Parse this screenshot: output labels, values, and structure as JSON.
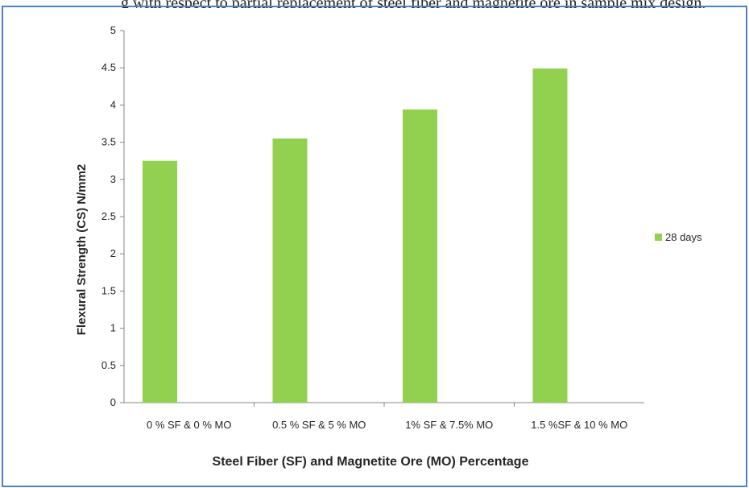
{
  "caption_fragment": "g with respect to partial replacement of steel fiber and magnetite ore in sample mix design.",
  "chart_data": {
    "type": "bar",
    "categories": [
      "0 % SF & 0 % MO",
      "0.5 % SF & 5 % MO",
      "1% SF & 7.5% MO",
      "1.5 %SF & 10 % MO"
    ],
    "series": [
      {
        "name": "28 days",
        "values": [
          3.25,
          3.55,
          3.94,
          4.49
        ]
      }
    ],
    "xlabel": "Steel Fiber (SF) and Magnetite Ore (MO) Percentage",
    "ylabel": "Flexural Strength (CS) N/mm2",
    "ylim": [
      0,
      5
    ],
    "yticks": [
      "0",
      "0.5",
      "1",
      "1.5",
      "2",
      "2.5",
      "3",
      "3.5",
      "4",
      "4.5",
      "5"
    ],
    "grid": false,
    "legend_position": "right",
    "colors": {
      "bar": "#92d050",
      "frame": "#4f81bd",
      "axis": "#868686",
      "text": "#262626"
    }
  }
}
